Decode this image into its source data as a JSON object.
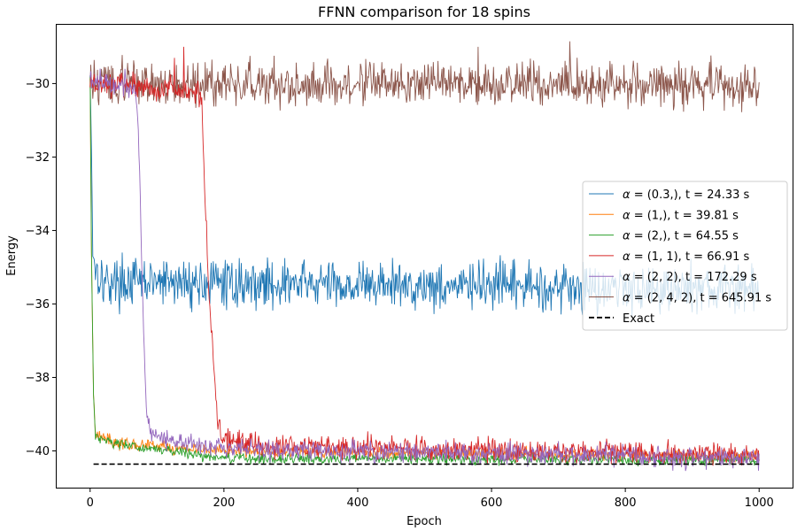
{
  "chart_data": {
    "type": "line",
    "title": "FFNN comparison for 18 spins",
    "xlabel": "Epoch",
    "ylabel": "Energy",
    "xlim": [
      -50,
      1050
    ],
    "ylim": [
      -41.0,
      -28.4
    ],
    "xticks": [
      0,
      200,
      400,
      600,
      800,
      1000
    ],
    "yticks": [
      -40,
      -38,
      -36,
      -34,
      -32,
      -30
    ],
    "grid": false,
    "legend_position": "center-right",
    "exact_value": -40.36,
    "series": [
      {
        "name": "(0.3,), t = 24.33 s",
        "color": "#1f77b4",
        "profile": [
          [
            0,
            -29.8
          ],
          [
            2,
            -31.5
          ],
          [
            4,
            -34.5
          ],
          [
            8,
            -35.0
          ],
          [
            20,
            -35.4
          ],
          [
            1000,
            -35.6
          ]
        ],
        "noise": 0.32,
        "linestyle": "solid"
      },
      {
        "name": "(1,), t = 39.81 s",
        "color": "#ff7f0e",
        "profile": [
          [
            0,
            -29.8
          ],
          [
            2,
            -34.5
          ],
          [
            5,
            -38.5
          ],
          [
            8,
            -39.5
          ],
          [
            40,
            -39.8
          ],
          [
            200,
            -40.0
          ],
          [
            1000,
            -40.15
          ]
        ],
        "noise": 0.08,
        "linestyle": "solid"
      },
      {
        "name": "(2,), t = 64.55 s",
        "color": "#2ca02c",
        "profile": [
          [
            0,
            -29.8
          ],
          [
            2,
            -34.5
          ],
          [
            5,
            -38.5
          ],
          [
            8,
            -39.6
          ],
          [
            50,
            -39.85
          ],
          [
            200,
            -40.2
          ],
          [
            1000,
            -40.25
          ]
        ],
        "noise": 0.07,
        "linestyle": "solid"
      },
      {
        "name": "(1, 1), t = 66.91 s",
        "color": "#d62728",
        "profile": [
          [
            0,
            -30.0
          ],
          [
            160,
            -30.2
          ],
          [
            167,
            -30.5
          ],
          [
            172,
            -33.2
          ],
          [
            178,
            -35.8
          ],
          [
            184,
            -37.5
          ],
          [
            190,
            -39.0
          ],
          [
            197,
            -39.65
          ],
          [
            260,
            -39.85
          ],
          [
            1000,
            -40.1
          ]
        ],
        "noise": 0.16,
        "spikes": [
          [
            140,
            -29.0
          ],
          [
            126,
            -29.3
          ]
        ],
        "linestyle": "solid"
      },
      {
        "name": "(2, 2), t = 172.29 s",
        "color": "#9467bd",
        "profile": [
          [
            0,
            -29.9
          ],
          [
            68,
            -30.1
          ],
          [
            72,
            -31.2
          ],
          [
            75,
            -33.0
          ],
          [
            78,
            -35.5
          ],
          [
            82,
            -38.0
          ],
          [
            87,
            -39.3
          ],
          [
            95,
            -39.6
          ],
          [
            200,
            -39.95
          ],
          [
            1000,
            -40.2
          ]
        ],
        "noise": 0.14,
        "spikes": [
          [
            52,
            -29.6
          ]
        ],
        "linestyle": "solid"
      },
      {
        "name": "(2, 4, 2), t = 645.91 s",
        "color": "#8c564b",
        "profile": [
          [
            0,
            -30.0
          ],
          [
            1000,
            -30.05
          ]
        ],
        "noise": 0.3,
        "spikes": [
          [
            717,
            -28.85
          ],
          [
            580,
            -29.0
          ]
        ],
        "linestyle": "solid"
      },
      {
        "name": "Exact",
        "color": "#000000",
        "profile": [
          [
            5,
            -40.36
          ],
          [
            1000,
            -40.36
          ]
        ],
        "noise": 0,
        "linestyle": "dashed"
      }
    ]
  },
  "legend": {
    "prefix": "α",
    "items": [
      "= (0.3,), t = 24.33 s",
      "= (1,), t = 39.81 s",
      "= (2,), t = 64.55 s",
      "= (1, 1), t = 66.91 s",
      "= (2, 2), t = 172.29 s",
      "= (2, 4, 2), t = 645.91 s",
      "Exact"
    ]
  }
}
